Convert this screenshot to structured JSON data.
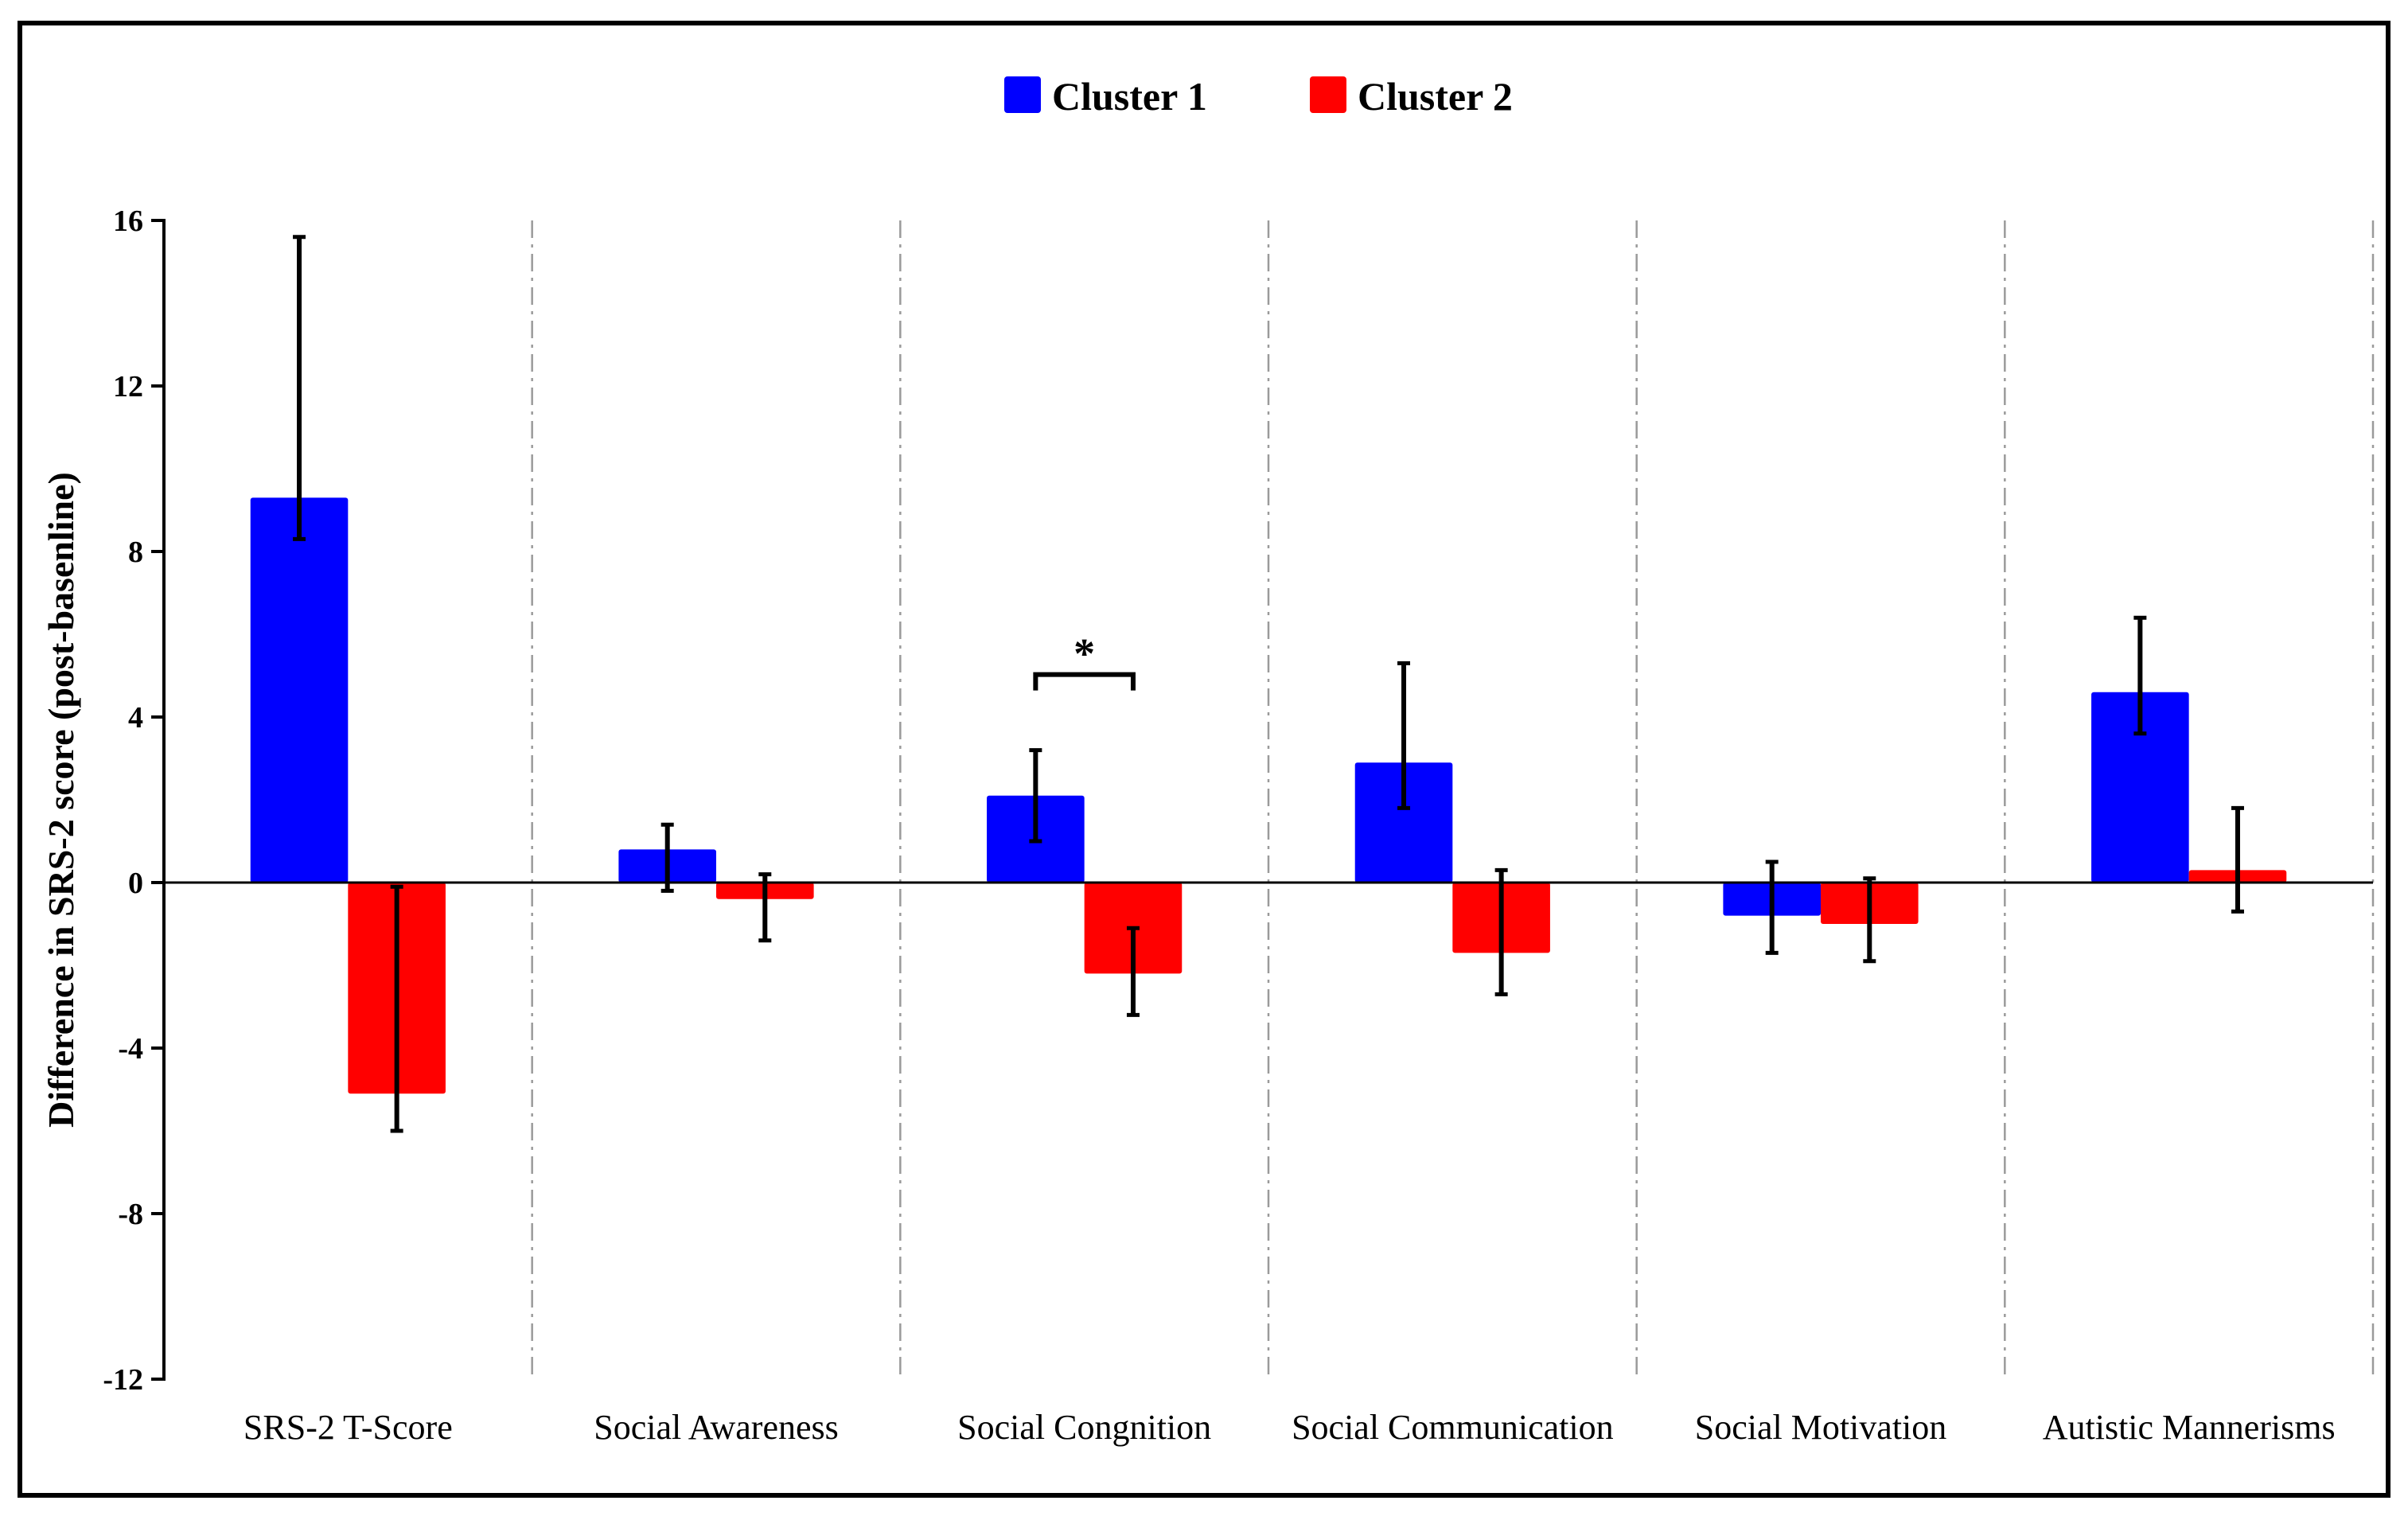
{
  "chart_data": {
    "type": "bar",
    "ylabel": "Difference in SRS-2 score (post-basenline)",
    "xlabel": "",
    "ylim": [
      -12,
      16
    ],
    "yticks": [
      16,
      12,
      8,
      4,
      0,
      -4,
      -8,
      -12
    ],
    "categories": [
      "SRS-2 T-Score",
      "Social Awareness",
      "Social Congnition",
      "Social Communication",
      "Social Motivation",
      "Autistic Mannerisms"
    ],
    "series": [
      {
        "name": "Cluster 1",
        "color": "#0000ff",
        "values": [
          9.3,
          0.8,
          2.1,
          2.9,
          -0.8,
          4.6
        ],
        "error": [
          [
            8.3,
            15.6
          ],
          [
            -0.2,
            1.4
          ],
          [
            1.0,
            3.2
          ],
          [
            1.8,
            5.3
          ],
          [
            -1.7,
            0.5
          ],
          [
            3.6,
            6.4
          ]
        ]
      },
      {
        "name": "Cluster 2",
        "color": "#ff0000",
        "values": [
          -5.1,
          -0.4,
          -2.2,
          -1.7,
          -1.0,
          0.3
        ],
        "error": [
          [
            -6.0,
            -0.1
          ],
          [
            -1.4,
            0.2
          ],
          [
            -3.2,
            -1.1
          ],
          [
            -2.7,
            0.3
          ],
          [
            -1.9,
            0.1
          ],
          [
            -0.7,
            1.8
          ]
        ]
      }
    ],
    "annotations": [
      {
        "category_index": 2,
        "text": "*"
      }
    ],
    "legend_position": "top-center",
    "grid": "vertical dash-dot separators between categories"
  }
}
